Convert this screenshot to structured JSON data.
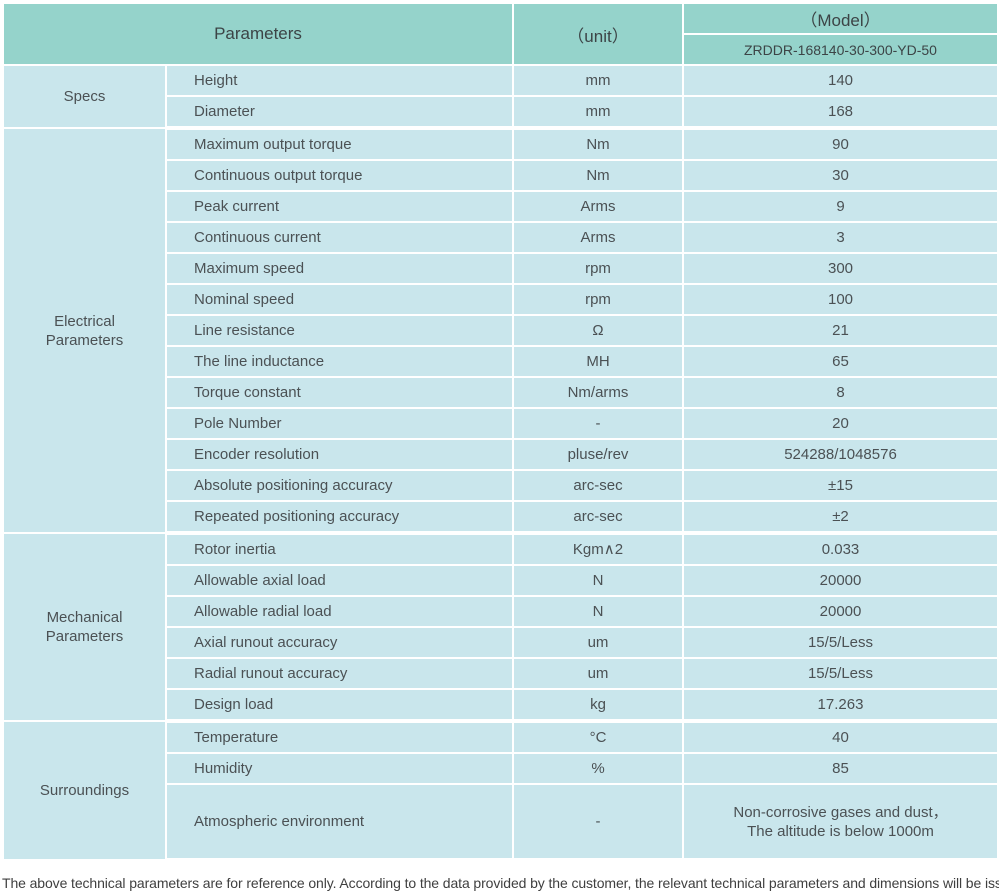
{
  "colors": {
    "header_bg": "#95d3cb",
    "cell_bg": "#c9e6ec",
    "header_text": "#3c4446",
    "cell_text": "#4b5154"
  },
  "header": {
    "parameters_label": "Parameters",
    "unit_label": "（unit）",
    "model_label": "（Model）",
    "model_value": "ZRDDR-168140-30-300-YD-50"
  },
  "sections": [
    {
      "name": "Specs",
      "rows": [
        {
          "param": "Height",
          "unit": "mm",
          "value": "140"
        },
        {
          "param": "Diameter",
          "unit": "mm",
          "value": "168"
        }
      ]
    },
    {
      "name": "Electrical\nParameters",
      "rows": [
        {
          "param": "Maximum output torque",
          "unit": "Nm",
          "value": "90"
        },
        {
          "param": "Continuous output torque",
          "unit": "Nm",
          "value": "30"
        },
        {
          "param": "Peak current",
          "unit": "Arms",
          "value": "9"
        },
        {
          "param": "Continuous current",
          "unit": "Arms",
          "value": "3"
        },
        {
          "param": "Maximum speed",
          "unit": "rpm",
          "value": "300"
        },
        {
          "param": "Nominal speed",
          "unit": "rpm",
          "value": "100"
        },
        {
          "param": "Line resistance",
          "unit": "Ω",
          "value": "21"
        },
        {
          "param": "The line inductance",
          "unit": "MH",
          "value": "65"
        },
        {
          "param": "Torque constant",
          "unit": "Nm/arms",
          "value": "8"
        },
        {
          "param": "Pole Number",
          "unit": "-",
          "value": "20"
        },
        {
          "param": "Encoder resolution",
          "unit": "pluse/rev",
          "value": "524288/1048576"
        },
        {
          "param": "Absolute positioning accuracy",
          "unit": "arc-sec",
          "value": "±15"
        },
        {
          "param": "Repeated positioning accuracy",
          "unit": "arc-sec",
          "value": "±2"
        }
      ]
    },
    {
      "name": "Mechanical\nParameters",
      "rows": [
        {
          "param": "Rotor inertia",
          "unit": "Kgm∧2",
          "value": "0.033"
        },
        {
          "param": "Allowable axial load",
          "unit": "N",
          "value": "20000"
        },
        {
          "param": "Allowable radial load",
          "unit": "N",
          "value": "20000"
        },
        {
          "param": "Axial runout accuracy",
          "unit": "um",
          "value": "15/5/Less"
        },
        {
          "param": "Radial runout accuracy",
          "unit": "um",
          "value": "15/5/Less"
        },
        {
          "param": "Design load",
          "unit": "kg",
          "value": "17.263"
        }
      ]
    },
    {
      "name": "Surroundings",
      "rows": [
        {
          "param": "Temperature",
          "unit": "°C",
          "value": "40"
        },
        {
          "param": "Humidity",
          "unit": "%",
          "value": "85"
        },
        {
          "param": "Atmospheric environment",
          "unit": "-",
          "value": "Non-corrosive gases and dust，\nThe altitude is below 1000m",
          "tall": true
        }
      ]
    }
  ],
  "footer": {
    "note": "The above technical parameters are for reference only. According to the data provided by the customer, the relevant technical parameters and dimensions will be issued."
  }
}
